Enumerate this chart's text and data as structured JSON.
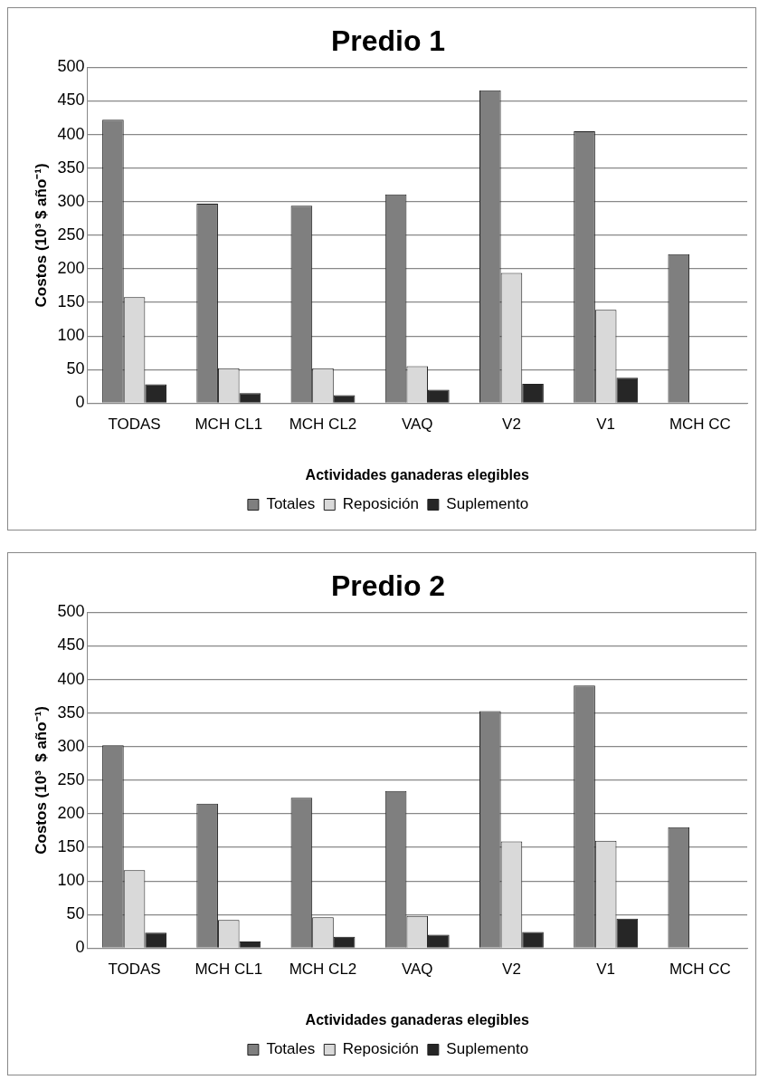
{
  "chart_data": [
    {
      "type": "bar",
      "title": "Predio 1",
      "xlabel": "Actividades ganaderas elegibles",
      "ylabel": "Costos (10³ $ año⁻¹)",
      "categories": [
        "TODAS",
        "MCH CL1",
        "MCH CL2",
        "VAQ",
        "V2",
        "V1",
        "MCH CC"
      ],
      "series": [
        {
          "name": "Totales",
          "color": "#7f7f7f",
          "values": [
            422,
            297,
            294,
            311,
            466,
            405,
            222
          ]
        },
        {
          "name": "Reposición",
          "color": "#d9d9d9",
          "values": [
            158,
            52,
            52,
            55,
            194,
            139,
            0
          ]
        },
        {
          "name": "Suplemento",
          "color": "#262626",
          "values": [
            28,
            15,
            12,
            20,
            29,
            38,
            0
          ]
        }
      ],
      "ylim": [
        0,
        500
      ],
      "yticks": [
        0,
        50,
        100,
        150,
        200,
        250,
        300,
        350,
        400,
        450,
        500
      ],
      "grid": "y",
      "legend": "bottom"
    },
    {
      "type": "bar",
      "title": "Predio 2",
      "xlabel": "Actividades ganaderas elegibles",
      "ylabel": "Costos (10³  $ año⁻¹)",
      "categories": [
        "TODAS",
        "MCH CL1",
        "MCH CL2",
        "VAQ",
        "V2",
        "V1",
        "MCH CC"
      ],
      "series": [
        {
          "name": "Totales",
          "color": "#7f7f7f",
          "values": [
            302,
            215,
            224,
            234,
            353,
            391,
            180
          ]
        },
        {
          "name": "Reposición",
          "color": "#d9d9d9",
          "values": [
            116,
            42,
            46,
            48,
            159,
            160,
            0
          ]
        },
        {
          "name": "Suplemento",
          "color": "#262626",
          "values": [
            23,
            10,
            17,
            20,
            24,
            44,
            0
          ]
        }
      ],
      "ylim": [
        0,
        500
      ],
      "yticks": [
        0,
        50,
        100,
        150,
        200,
        250,
        300,
        350,
        400,
        450,
        500
      ],
      "grid": "y",
      "legend": "bottom"
    }
  ]
}
